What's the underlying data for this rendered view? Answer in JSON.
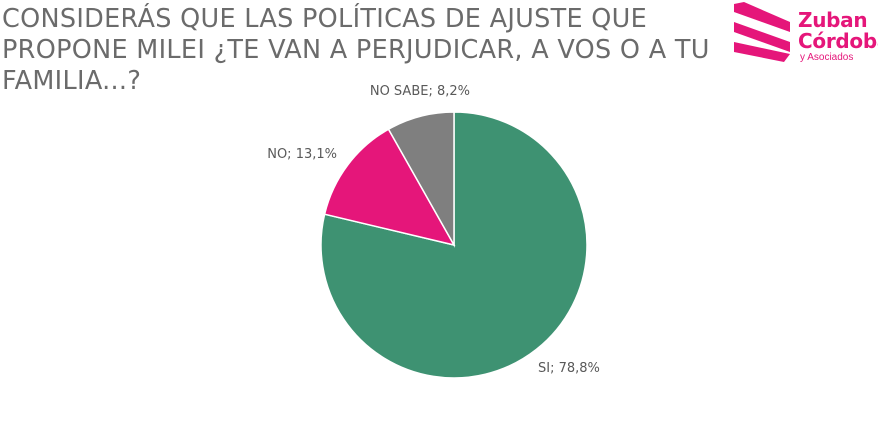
{
  "title_lines": [
    "CONSIDERÁS QUE LAS POLÍTICAS DE AJUSTE QUE",
    "PROPONE MILEI ¿TE VAN A PERJUDICAR, A VOS O A TU",
    "FAMILIA...?"
  ],
  "logo": {
    "line1": "Zuban",
    "line2": "Córdoba",
    "line3": "y Asociados",
    "color": "#e5167a"
  },
  "chart_data": {
    "type": "pie",
    "title": "CONSIDERÁS QUE LAS POLÍTICAS DE AJUSTE QUE PROPONE MILEI ¿TE VAN A PERJUDICAR, A VOS O A TU FAMILIA...?",
    "categories": [
      "SI",
      "NO",
      "NO SABE"
    ],
    "values": [
      78.8,
      13.1,
      8.2
    ],
    "colors": [
      "#3e9272",
      "#e5167a",
      "#7f7f7f"
    ],
    "labels": [
      "SI; 78,8%",
      "NO; 13,1%",
      "NO SABE; 8,2%"
    ],
    "start": "12 o'clock",
    "direction": "clockwise"
  }
}
